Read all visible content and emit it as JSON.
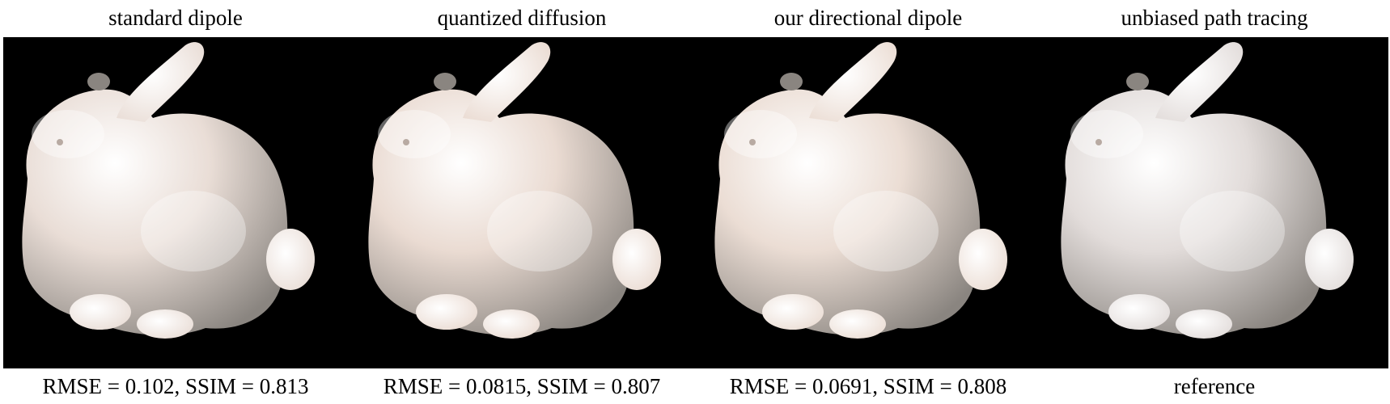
{
  "panels": [
    {
      "title": "standard dipole",
      "caption": "RMSE = 0.102, SSIM = 0.813",
      "image": "bunny-render",
      "tint": "#e9ddd6"
    },
    {
      "title": "quantized diffusion",
      "caption": "RMSE = 0.0815, SSIM = 0.807",
      "image": "bunny-render",
      "tint": "#eadbd2"
    },
    {
      "title": "our directional dipole",
      "caption": "RMSE = 0.0691, SSIM = 0.808",
      "image": "bunny-render",
      "tint": "#ebddd4"
    },
    {
      "title": "unbiased path tracing",
      "caption": "reference",
      "image": "bunny-render",
      "tint": "#e2dcda"
    }
  ],
  "colors": {
    "background": "#000000",
    "bunny_highlight": "#ffffff",
    "bunny_shadow": "#8a8580"
  }
}
